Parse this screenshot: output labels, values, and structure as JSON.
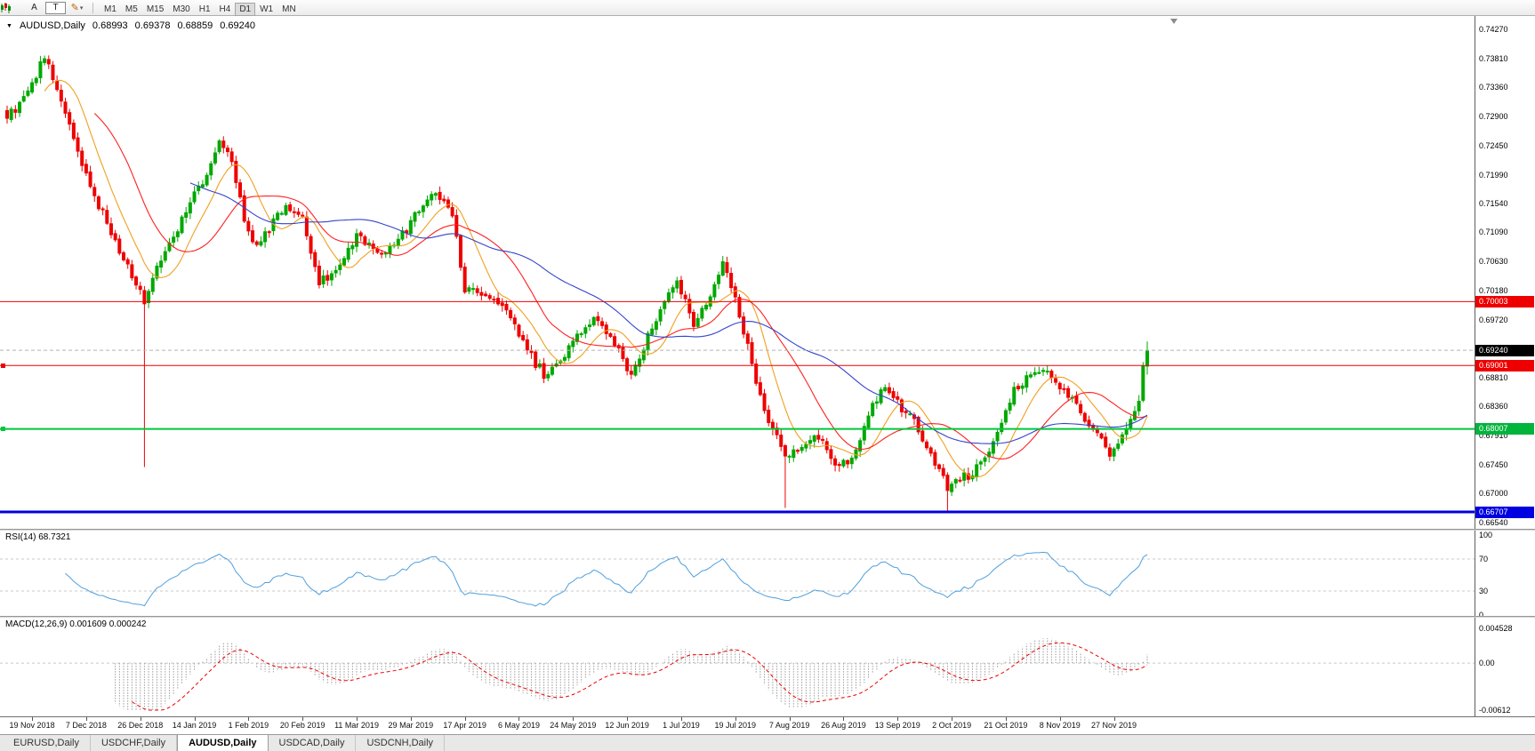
{
  "toolbar": {
    "chart_type_icon": "candlestick-chart",
    "annotation_buttons": [
      {
        "label": "A",
        "name": "text-label-tool"
      },
      {
        "label": "T",
        "name": "text-tool"
      }
    ],
    "crayon_icon": "✎",
    "dropdown_caret": "▾",
    "timeframes": [
      "M1",
      "M5",
      "M15",
      "M30",
      "H1",
      "H4",
      "D1",
      "W1",
      "MN"
    ],
    "active_timeframe": "D1"
  },
  "header": {
    "collapse_icon": "▼",
    "symbol": "AUDUSD,Daily",
    "open": "0.68993",
    "high": "0.69378",
    "low": "0.68859",
    "close": "0.69240"
  },
  "price_axis": {
    "range": {
      "top": 0.7427,
      "bottom": 0.6654
    },
    "labels": [
      "0.74270",
      "0.73810",
      "0.73360",
      "0.72900",
      "0.72450",
      "0.71990",
      "0.71540",
      "0.71090",
      "0.70630",
      "0.70180",
      "0.69720",
      "0.68810",
      "0.68360",
      "0.67910",
      "0.67450",
      "0.67000",
      "0.66540"
    ],
    "tags": [
      {
        "text": "0.69240",
        "price": 0.6924,
        "color": "#000000",
        "name": "current-price"
      },
      {
        "text": "0.70003",
        "price": 0.70003,
        "color": "#ee0000",
        "name": "resistance-1"
      },
      {
        "text": "0.69001",
        "price": 0.69001,
        "color": "#ee0000",
        "name": "resistance-2"
      },
      {
        "text": "0.68007",
        "price": 0.68007,
        "color": "#00b43c",
        "name": "support-1"
      },
      {
        "text": "0.66707",
        "price": 0.66707,
        "color": "#0000e0",
        "name": "support-2"
      }
    ]
  },
  "hlines": [
    {
      "price": 0.6924,
      "color": "#b4b4b4",
      "width": 1,
      "style": "dashed"
    },
    {
      "price": 0.70003,
      "color": "#ee0000",
      "width": 1,
      "style": "solid"
    },
    {
      "price": 0.69001,
      "color": "#ee0000",
      "width": 1,
      "style": "solid",
      "anchor_marker": true
    },
    {
      "price": 0.68007,
      "color": "#00c83c",
      "width": 2,
      "style": "solid",
      "anchor_marker": true
    },
    {
      "price": 0.66707,
      "color": "#0000e0",
      "width": 3,
      "style": "solid"
    }
  ],
  "dates": {
    "labels": [
      "19 Nov 2018",
      "7 Dec 2018",
      "26 Dec 2018",
      "14 Jan 2019",
      "1 Feb 2019",
      "20 Feb 2019",
      "11 Mar 2019",
      "29 Mar 2019",
      "17 Apr 2019",
      "6 May 2019",
      "24 May 2019",
      "12 Jun 2019",
      "1 Jul 2019",
      "19 Jul 2019",
      "7 Aug 2019",
      "26 Aug 2019",
      "13 Sep 2019",
      "2 Oct 2019",
      "21 Oct 2019",
      "8 Nov 2019",
      "27 Nov 2019"
    ],
    "first_index": 6,
    "step": 13
  },
  "rsi": {
    "label": "RSI(14) 68.7321",
    "value": 68.7321,
    "period": 14,
    "axis_labels": [
      "100",
      "70",
      "30",
      "0"
    ],
    "levels": [
      70,
      30
    ],
    "color": "#4f9fdc"
  },
  "macd": {
    "label": "MACD(12,26,9) 0.001609 0.000242",
    "value_main": 0.001609,
    "value_signal": 0.000242,
    "axis_labels": [
      {
        "text": "0.004528",
        "value": 0.004528
      },
      {
        "text": "0.00",
        "value": 0
      },
      {
        "text": "-0.00612",
        "value": -0.00612
      }
    ],
    "max": 0.004528,
    "min": -0.00612,
    "histogram_color": "#9b9b9b",
    "signal_color": "#ee0000"
  },
  "tabs": [
    "EURUSD,Daily",
    "USDCHF,Daily",
    "AUDUSD,Daily",
    "USDCAD,Daily",
    "USDCNH,Daily"
  ],
  "active_tab": "AUDUSD,Daily",
  "chart_data": {
    "type": "candlestick",
    "symbol": "AUDUSD",
    "timeframe": "Daily",
    "count": 275,
    "up_color": "#00a800",
    "down_color": "#ee0000",
    "ma": [
      {
        "period": 10,
        "color": "#f0a020"
      },
      {
        "period": 22,
        "color": "#ff2020"
      },
      {
        "period": 45,
        "color": "#3344cc"
      }
    ],
    "close_anchors": [
      [
        0,
        0.7285
      ],
      [
        5,
        0.733
      ],
      [
        9,
        0.7382
      ],
      [
        13,
        0.732
      ],
      [
        17,
        0.724
      ],
      [
        21,
        0.7165
      ],
      [
        26,
        0.7095
      ],
      [
        30,
        0.7042
      ],
      [
        33,
        0.6995
      ],
      [
        37,
        0.707
      ],
      [
        42,
        0.7125
      ],
      [
        47,
        0.719
      ],
      [
        51,
        0.725
      ],
      [
        54,
        0.7225
      ],
      [
        57,
        0.712
      ],
      [
        60,
        0.7085
      ],
      [
        64,
        0.7125
      ],
      [
        67,
        0.715
      ],
      [
        71,
        0.713
      ],
      [
        75,
        0.703
      ],
      [
        79,
        0.705
      ],
      [
        84,
        0.7105
      ],
      [
        89,
        0.7078
      ],
      [
        93,
        0.709
      ],
      [
        98,
        0.7135
      ],
      [
        103,
        0.7172
      ],
      [
        107,
        0.714
      ],
      [
        110,
        0.702
      ],
      [
        115,
        0.7012
      ],
      [
        120,
        0.6992
      ],
      [
        124,
        0.694
      ],
      [
        129,
        0.6882
      ],
      [
        133,
        0.6905
      ],
      [
        138,
        0.6955
      ],
      [
        142,
        0.6975
      ],
      [
        146,
        0.6935
      ],
      [
        150,
        0.6882
      ],
      [
        154,
        0.6945
      ],
      [
        158,
        0.7
      ],
      [
        161,
        0.703
      ],
      [
        165,
        0.6965
      ],
      [
        169,
        0.7005
      ],
      [
        172,
        0.706
      ],
      [
        175,
        0.701
      ],
      [
        179,
        0.69
      ],
      [
        183,
        0.6815
      ],
      [
        187,
        0.676
      ],
      [
        191,
        0.6768
      ],
      [
        195,
        0.6792
      ],
      [
        199,
        0.6742
      ],
      [
        203,
        0.6758
      ],
      [
        207,
        0.6822
      ],
      [
        211,
        0.6868
      ],
      [
        214,
        0.6842
      ],
      [
        218,
        0.6812
      ],
      [
        222,
        0.6758
      ],
      [
        226,
        0.6706
      ],
      [
        230,
        0.6725
      ],
      [
        234,
        0.6742
      ],
      [
        238,
        0.6788
      ],
      [
        242,
        0.686
      ],
      [
        246,
        0.6888
      ],
      [
        250,
        0.6892
      ],
      [
        253,
        0.6872
      ],
      [
        257,
        0.6838
      ],
      [
        261,
        0.68
      ],
      [
        265,
        0.6765
      ],
      [
        268,
        0.679
      ],
      [
        270,
        0.6815
      ],
      [
        272,
        0.6845
      ],
      [
        273,
        0.6898
      ],
      [
        274,
        0.6924
      ]
    ],
    "special_candles": {
      "33": {
        "low": 0.6741
      },
      "187": {
        "low": 0.6677
      },
      "226": {
        "low": 0.667
      },
      "274": {
        "open": 0.68993,
        "high": 0.69378,
        "low": 0.68859,
        "close": 0.6924
      }
    },
    "noise_amp": 0.0013,
    "wick_amp": 0.0016
  }
}
